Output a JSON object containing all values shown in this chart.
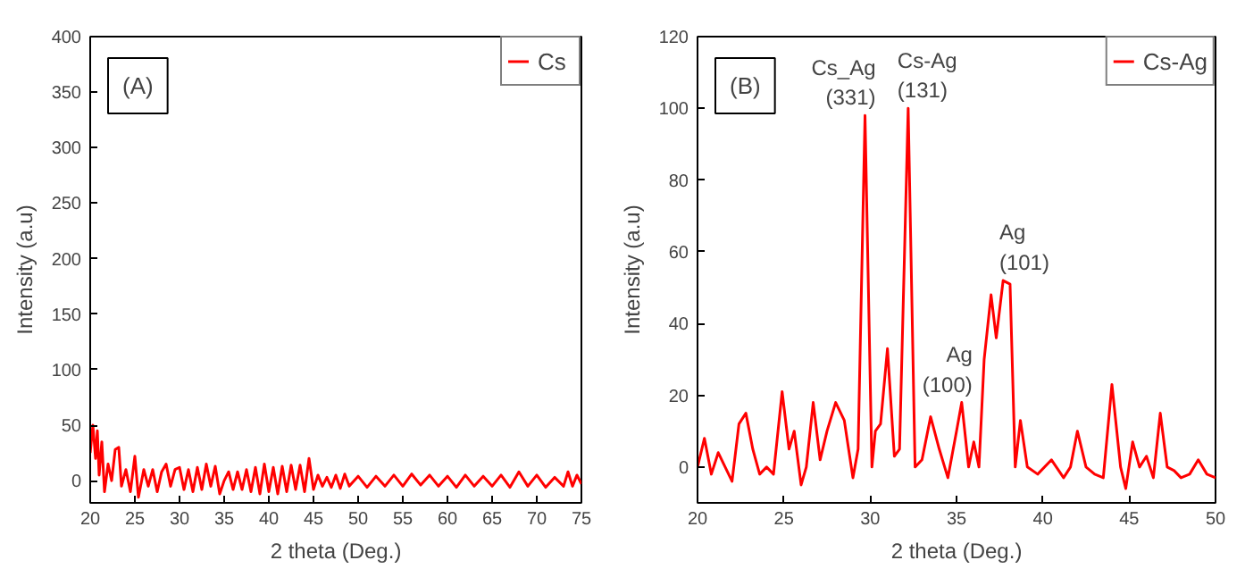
{
  "chart_data": [
    {
      "type": "line",
      "xlabel": "2 theta (Deg.)",
      "ylabel": "Intensity (a.u)",
      "xlim": [
        20,
        75
      ],
      "ylim": [
        -20,
        400
      ],
      "xticks": [
        20,
        25,
        30,
        35,
        40,
        45,
        50,
        55,
        60,
        65,
        70,
        75
      ],
      "yticks": [
        0,
        50,
        100,
        150,
        200,
        250,
        300,
        350,
        400
      ],
      "grid": false,
      "legend": "top right",
      "annotations": [
        "(A)"
      ],
      "series": [
        {
          "name": "Cs",
          "color": "#ff0000",
          "x": [
            20,
            20.3,
            20.6,
            20.8,
            21,
            21.3,
            21.6,
            22,
            22.4,
            22.8,
            23.2,
            23.5,
            24,
            24.5,
            25,
            25.4,
            26,
            26.5,
            27,
            27.5,
            28,
            28.5,
            29,
            29.5,
            30,
            30.5,
            31,
            31.5,
            32,
            32.5,
            33,
            33.5,
            34,
            34.5,
            35,
            35.5,
            36,
            36.5,
            37,
            37.5,
            38,
            38.5,
            39,
            39.5,
            40,
            40.5,
            41,
            41.5,
            42,
            42.5,
            43,
            43.5,
            44,
            44.5,
            45,
            45.5,
            46,
            46.5,
            47,
            47.5,
            48,
            48.5,
            49,
            50,
            51,
            52,
            53,
            54,
            55,
            56,
            57,
            58,
            59,
            60,
            61,
            62,
            63,
            64,
            65,
            66,
            67,
            68,
            69,
            70,
            71,
            72,
            73,
            73.5,
            74,
            74.5,
            75
          ],
          "values": [
            25,
            50,
            20,
            45,
            5,
            35,
            -10,
            15,
            0,
            28,
            30,
            -5,
            10,
            -10,
            22,
            -15,
            10,
            -5,
            10,
            -10,
            8,
            15,
            -5,
            10,
            12,
            -8,
            10,
            -10,
            12,
            -8,
            15,
            -5,
            13,
            -12,
            0,
            8,
            -8,
            8,
            -8,
            10,
            -10,
            12,
            -12,
            15,
            -10,
            12,
            -12,
            13,
            -10,
            14,
            -8,
            14,
            -10,
            20,
            -8,
            5,
            -5,
            3,
            -6,
            5,
            -7,
            6,
            -5,
            4,
            -6,
            4,
            -5,
            5,
            -5,
            6,
            -4,
            5,
            -5,
            4,
            -6,
            5,
            -5,
            4,
            -5,
            5,
            -6,
            8,
            -5,
            5,
            -6,
            3,
            -5,
            8,
            -5,
            5,
            -3
          ]
        }
      ]
    },
    {
      "type": "line",
      "xlabel": "2 theta (Deg.)",
      "ylabel": "Intensity (a.u)",
      "xlim": [
        20,
        50
      ],
      "ylim": [
        -10,
        120
      ],
      "xticks": [
        20,
        25,
        30,
        35,
        40,
        45,
        50
      ],
      "yticks": [
        0,
        20,
        40,
        60,
        80,
        100,
        120
      ],
      "grid": false,
      "legend": "top right",
      "annotations": [
        "(B)",
        {
          "text": "Cs_Ag\n(331)",
          "x": 29.7,
          "y": 98
        },
        {
          "text": "Cs-Ag\n(131)",
          "x": 32.2,
          "y": 100
        },
        {
          "text": "Ag\n(100)",
          "x": 35.3,
          "y": 18
        },
        {
          "text": "Ag\n(101)",
          "x": 38.1,
          "y": 52
        }
      ],
      "series": [
        {
          "name": "Cs-Ag",
          "color": "#ff0000",
          "x": [
            20,
            20.4,
            20.8,
            21.2,
            21.6,
            22,
            22.4,
            22.8,
            23.2,
            23.6,
            24,
            24.4,
            24.9,
            25.3,
            25.6,
            26,
            26.3,
            26.7,
            27.1,
            27.5,
            28,
            28.5,
            29,
            29.3,
            29.7,
            30.1,
            30.3,
            30.6,
            31,
            31.4,
            31.7,
            32.2,
            32.6,
            33,
            33.5,
            34,
            34.5,
            35,
            35.3,
            35.7,
            36,
            36.3,
            36.6,
            37,
            37.3,
            37.7,
            38.1,
            38.4,
            38.7,
            39.1,
            39.7,
            40.5,
            41.2,
            41.6,
            42,
            42.5,
            43,
            43.5,
            44,
            44.5,
            44.8,
            45.2,
            45.6,
            46,
            46.4,
            46.8,
            47.2,
            47.6,
            48,
            48.5,
            49,
            49.5,
            50
          ],
          "values": [
            0,
            8,
            -2,
            4,
            0,
            -4,
            12,
            15,
            5,
            -2,
            0,
            -2,
            21,
            5,
            10,
            -5,
            0,
            18,
            2,
            10,
            18,
            13,
            -3,
            5,
            98,
            0,
            10,
            12,
            33,
            3,
            5,
            100,
            0,
            2,
            14,
            5,
            -3,
            10,
            18,
            0,
            7,
            0,
            30,
            48,
            36,
            52,
            51,
            0,
            13,
            0,
            -2,
            2,
            -3,
            0,
            10,
            0,
            -2,
            -3,
            23,
            0,
            -6,
            7,
            0,
            3,
            -3,
            15,
            0,
            -1,
            -3,
            -2,
            2,
            -2,
            -3
          ]
        }
      ]
    }
  ]
}
